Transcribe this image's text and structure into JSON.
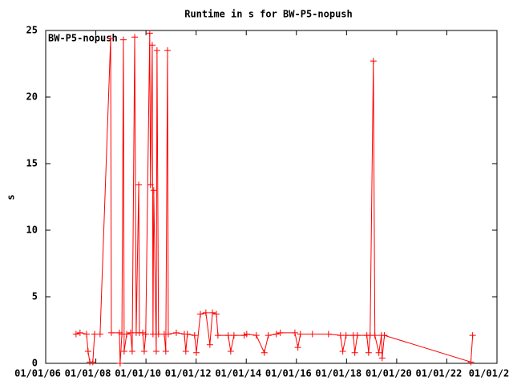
{
  "chart_data": {
    "type": "line",
    "title": "Runtime in s for BW-P5-nopush",
    "y_label": "s",
    "legend": "top-left",
    "x": [
      2007.21,
      2007.37,
      2007.63,
      2007.69,
      2007.76,
      2007.88,
      2007.95,
      2008.17,
      2008.59,
      2008.62,
      2008.94,
      2008.97,
      2009.04,
      2009.1,
      2009.13,
      2009.23,
      2009.39,
      2009.45,
      2009.55,
      2009.61,
      2009.71,
      2009.74,
      2009.87,
      2009.93,
      2009.99,
      2010.15,
      2010.18,
      2010.25,
      2010.28,
      2010.31,
      2010.41,
      2010.44,
      2010.5,
      2010.73,
      2010.79,
      2010.86,
      2010.89,
      2011.21,
      2011.53,
      2011.59,
      2011.65,
      2011.94,
      2012.01,
      2012.17,
      2012.39,
      2012.55,
      2012.65,
      2012.81,
      2012.87,
      2013.28,
      2013.38,
      2013.51,
      2013.92,
      2014.02,
      2014.4,
      2014.72,
      2014.88,
      2015.2,
      2015.36,
      2015.94,
      2016.06,
      2016.16,
      2016.64,
      2017.28,
      2017.76,
      2017.85,
      2017.98,
      2018.27,
      2018.33,
      2018.43,
      2018.81,
      2018.88,
      2018.94,
      2019.07,
      2019.13,
      2019.29,
      2019.39,
      2019.42,
      2019.51,
      2022.96,
      2023.03
    ],
    "series": [
      {
        "name": "BW-P5-nopush",
        "color": "#ff0000",
        "values": [
          2.2,
          2.3,
          2.2,
          0.9,
          0.1,
          0.1,
          2.2,
          2.2,
          24.4,
          2.3,
          2.3,
          0,
          2.2,
          24.3,
          0.9,
          2.2,
          2.3,
          0.9,
          24.5,
          2.3,
          13.4,
          2.3,
          2.3,
          0.9,
          2.2,
          24.8,
          13.4,
          23.9,
          2.2,
          13.0,
          0.9,
          23.5,
          2.2,
          2.2,
          0.9,
          23.5,
          2.2,
          2.3,
          2.2,
          0.9,
          2.2,
          2.1,
          0.8,
          3.7,
          3.8,
          1.4,
          3.8,
          3.7,
          2.1,
          2.1,
          0.9,
          2.1,
          2.1,
          2.2,
          2.1,
          0.8,
          2.1,
          2.2,
          2.3,
          2.3,
          1.2,
          2.2,
          2.2,
          2.2,
          2.1,
          0.9,
          2.1,
          2.1,
          0.8,
          2.1,
          2.1,
          0.8,
          2.1,
          22.7,
          2.1,
          0.8,
          2.1,
          0.4,
          2.1,
          0.1,
          2.1
        ]
      }
    ],
    "xlim": [
      2006,
      2024
    ],
    "xticks": [
      {
        "value": 2006,
        "label": "01/01/06"
      },
      {
        "value": 2008,
        "label": "01/01/08"
      },
      {
        "value": 2010,
        "label": "01/01/10"
      },
      {
        "value": 2012,
        "label": "01/01/12"
      },
      {
        "value": 2014,
        "label": "01/01/14"
      },
      {
        "value": 2016,
        "label": "01/01/16"
      },
      {
        "value": 2018,
        "label": "01/01/18"
      },
      {
        "value": 2020,
        "label": "01/01/20"
      },
      {
        "value": 2022,
        "label": "01/01/22"
      },
      {
        "value": 2024,
        "label": "01/01/2"
      }
    ],
    "ylim": [
      0,
      25
    ],
    "yticks": [
      0,
      5,
      10,
      15,
      20,
      25
    ],
    "grid": false
  }
}
